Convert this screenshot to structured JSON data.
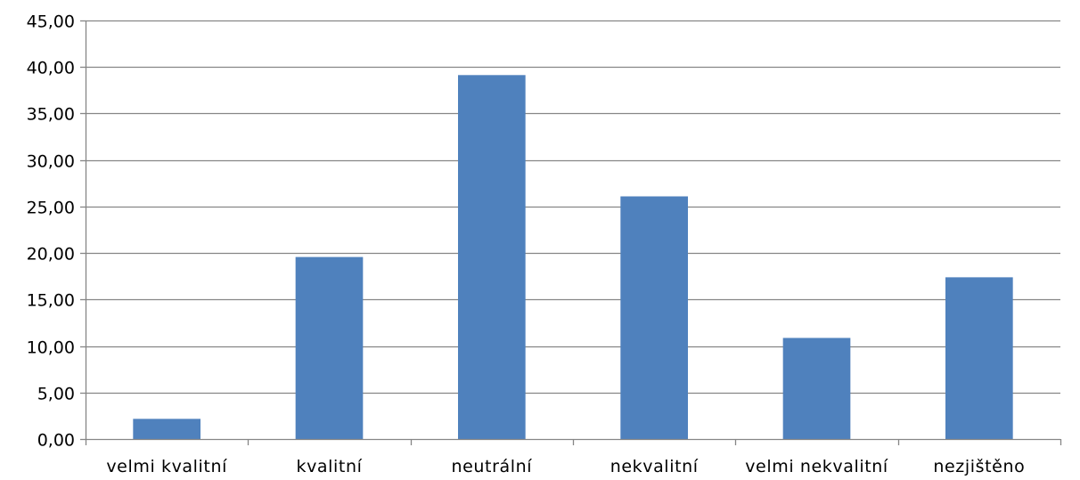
{
  "chart_data": {
    "type": "bar",
    "categories": [
      "velmi kvalitní",
      "kvalitní",
      "neutrální",
      "nekvalitní",
      "velmi nekvalitní",
      "nezjištěno"
    ],
    "values": [
      2.17,
      19.57,
      39.13,
      26.09,
      10.87,
      17.39
    ],
    "ylim": [
      0,
      45
    ],
    "yticks": [
      "0,00",
      "5,00",
      "10,00",
      "15,00",
      "20,00",
      "25,00",
      "30,00",
      "35,00",
      "40,00",
      "45,00"
    ],
    "ytick_values": [
      0,
      5,
      10,
      15,
      20,
      25,
      30,
      35,
      40,
      45
    ],
    "grid": true,
    "legend": "none",
    "colors": {
      "bar": "#4f81bd",
      "grid": "#868686",
      "axis": "#868686"
    }
  }
}
